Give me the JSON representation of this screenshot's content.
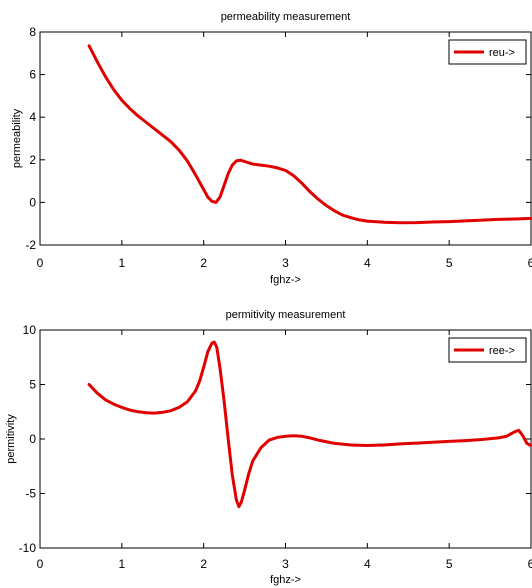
{
  "chart_data": [
    {
      "type": "line",
      "title": "permeability measurement",
      "xlabel": "fghz->",
      "ylabel": "permeability",
      "xlim": [
        0,
        6
      ],
      "ylim": [
        -2,
        8
      ],
      "xticks": [
        "0",
        "1",
        "2",
        "3",
        "4",
        "5",
        "6"
      ],
      "yticks": [
        "-2",
        "0",
        "2",
        "4",
        "6",
        "8"
      ],
      "legend_position": "top-right",
      "grid": false,
      "series": [
        {
          "name": "reu->",
          "color": "#e00000",
          "x": [
            0.6,
            0.7,
            0.8,
            0.9,
            1.0,
            1.1,
            1.2,
            1.3,
            1.4,
            1.5,
            1.6,
            1.7,
            1.8,
            1.9,
            2.0,
            2.05,
            2.1,
            2.15,
            2.2,
            2.25,
            2.3,
            2.35,
            2.4,
            2.45,
            2.5,
            2.6,
            2.7,
            2.8,
            2.9,
            3.0,
            3.1,
            3.2,
            3.3,
            3.4,
            3.5,
            3.6,
            3.7,
            3.8,
            3.9,
            4.0,
            4.2,
            4.4,
            4.6,
            4.8,
            5.0,
            5.2,
            5.4,
            5.6,
            5.8,
            6.0
          ],
          "y": [
            7.35,
            6.6,
            5.9,
            5.3,
            4.8,
            4.4,
            4.05,
            3.75,
            3.45,
            3.15,
            2.85,
            2.45,
            1.95,
            1.3,
            0.6,
            0.25,
            0.05,
            0.0,
            0.25,
            0.8,
            1.35,
            1.75,
            1.95,
            1.98,
            1.92,
            1.8,
            1.75,
            1.7,
            1.62,
            1.5,
            1.25,
            0.9,
            0.5,
            0.15,
            -0.15,
            -0.4,
            -0.6,
            -0.72,
            -0.82,
            -0.88,
            -0.93,
            -0.96,
            -0.95,
            -0.92,
            -0.9,
            -0.87,
            -0.83,
            -0.8,
            -0.78,
            -0.75
          ]
        }
      ]
    },
    {
      "type": "line",
      "title": "permitivity measurement",
      "xlabel": "fghz->",
      "ylabel": "permitivity",
      "xlim": [
        0,
        6
      ],
      "ylim": [
        -10,
        10
      ],
      "xticks": [
        "0",
        "1",
        "2",
        "3",
        "4",
        "5",
        "6"
      ],
      "yticks": [
        "-10",
        "-5",
        "0",
        "5",
        "10"
      ],
      "legend_position": "top-right",
      "grid": false,
      "series": [
        {
          "name": "ree->",
          "color": "#e00000",
          "x": [
            0.6,
            0.7,
            0.8,
            0.9,
            1.0,
            1.1,
            1.2,
            1.3,
            1.4,
            1.5,
            1.6,
            1.7,
            1.8,
            1.9,
            1.95,
            2.0,
            2.05,
            2.1,
            2.13,
            2.16,
            2.2,
            2.25,
            2.3,
            2.35,
            2.4,
            2.43,
            2.46,
            2.5,
            2.55,
            2.6,
            2.7,
            2.8,
            2.9,
            3.0,
            3.1,
            3.2,
            3.3,
            3.4,
            3.6,
            3.8,
            4.0,
            4.2,
            4.4,
            4.6,
            4.8,
            5.0,
            5.2,
            5.4,
            5.6,
            5.7,
            5.75,
            5.8,
            5.85,
            5.9,
            5.95,
            6.0
          ],
          "y": [
            5.0,
            4.2,
            3.6,
            3.2,
            2.9,
            2.65,
            2.5,
            2.4,
            2.38,
            2.45,
            2.6,
            2.9,
            3.4,
            4.4,
            5.3,
            6.6,
            8.0,
            8.8,
            8.9,
            8.4,
            6.5,
            3.5,
            0.0,
            -3.3,
            -5.6,
            -6.2,
            -5.8,
            -4.7,
            -3.2,
            -2.0,
            -0.8,
            -0.1,
            0.15,
            0.25,
            0.3,
            0.25,
            0.1,
            -0.1,
            -0.4,
            -0.55,
            -0.6,
            -0.55,
            -0.45,
            -0.38,
            -0.3,
            -0.22,
            -0.15,
            -0.05,
            0.1,
            0.25,
            0.45,
            0.65,
            0.8,
            0.3,
            -0.4,
            -0.6
          ]
        }
      ]
    }
  ]
}
